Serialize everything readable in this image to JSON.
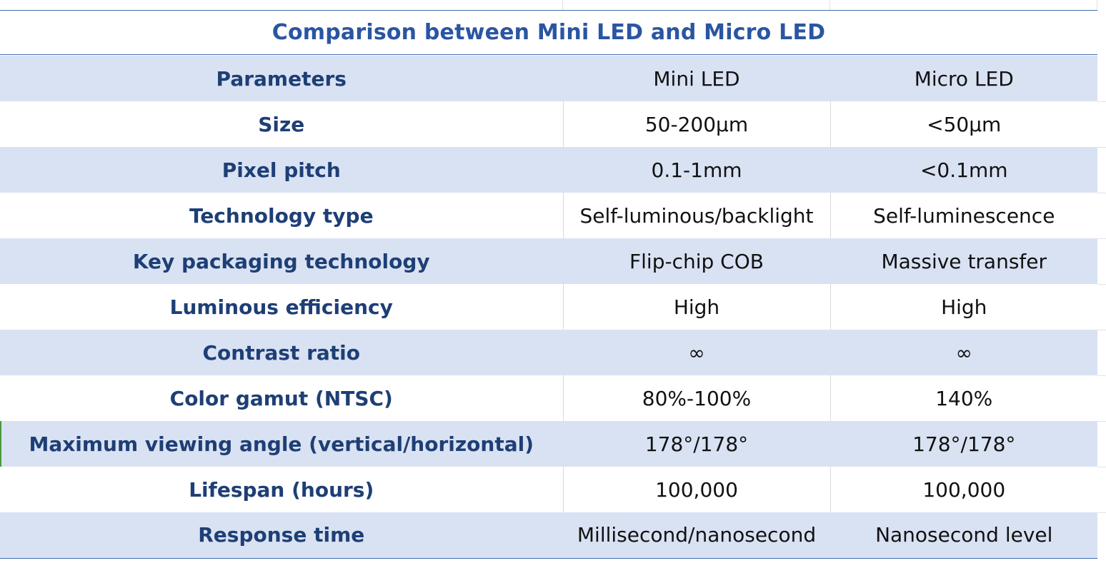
{
  "title": "Comparison between Mini LED and Micro LED",
  "header": {
    "parameters": "Parameters",
    "mini_led": "Mini LED",
    "micro_led": "Micro LED"
  },
  "rows": [
    {
      "param": "Size",
      "mini": "50-200μm",
      "micro": "<50μm"
    },
    {
      "param": "Pixel pitch",
      "mini": "0.1-1mm",
      "micro": "<0.1mm"
    },
    {
      "param": "Technology type",
      "mini": "Self-luminous/backlight",
      "micro": "Self-luminescence"
    },
    {
      "param": "Key packaging technology",
      "mini": "Flip-chip COB",
      "micro": "Massive transfer"
    },
    {
      "param": "Luminous efficiency",
      "mini": "High",
      "micro": "High"
    },
    {
      "param": "Contrast ratio",
      "mini": "∞",
      "micro": "∞"
    },
    {
      "param": "Color gamut (NTSC)",
      "mini": "80%-100%",
      "micro": "140%"
    },
    {
      "param": "Maximum viewing angle (vertical/horizontal)",
      "mini": "178°/178°",
      "micro": "178°/178°"
    },
    {
      "param": "Lifespan (hours)",
      "mini": "100,000",
      "micro": "100,000"
    },
    {
      "param": "Response time",
      "mini": "Millisecond/nanosecond",
      "micro": "Nanosecond level"
    }
  ],
  "colors": {
    "title": "#2a55a2",
    "parameter_text": "#1e3f75",
    "shaded_row": "#d9e2f3",
    "rule": "#3f6fb0"
  }
}
